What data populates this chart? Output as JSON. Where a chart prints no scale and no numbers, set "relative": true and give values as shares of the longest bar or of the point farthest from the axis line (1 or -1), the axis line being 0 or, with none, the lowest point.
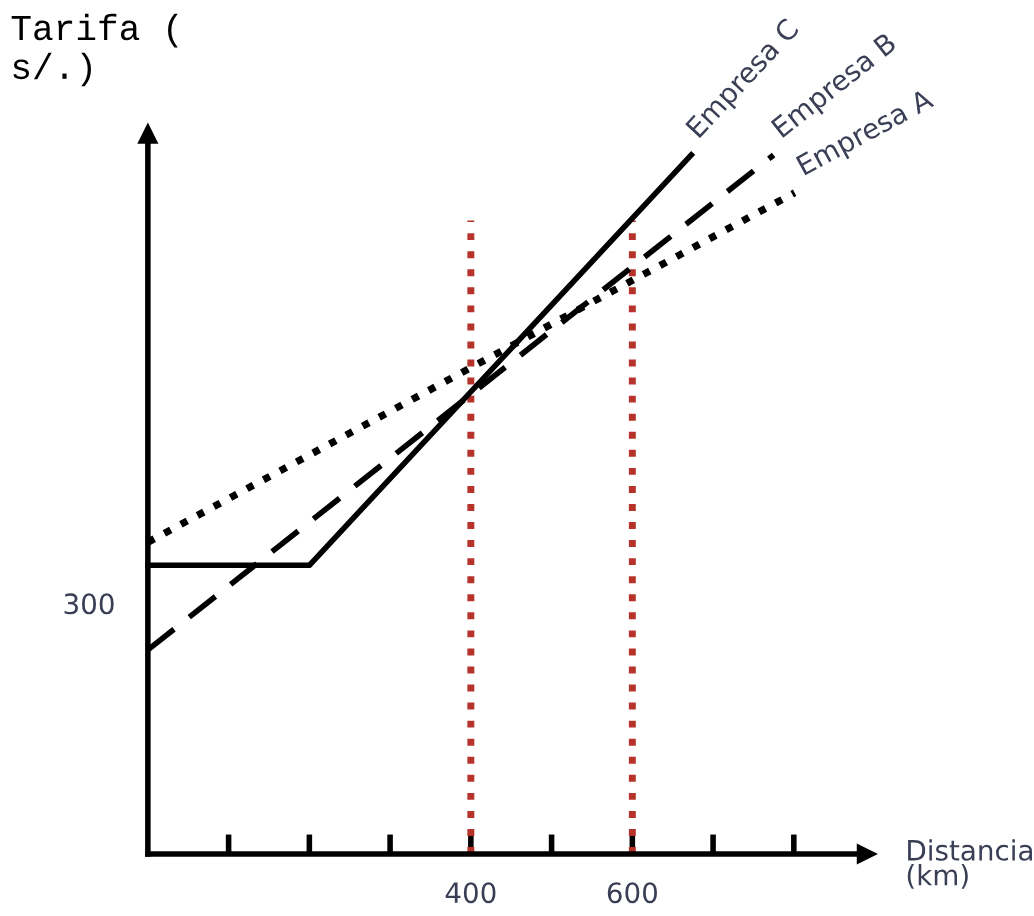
{
  "chart_data": {
    "type": "line",
    "ylabel": "Tarifa (\ns/.)",
    "xlabel": "Distancia\n(km)",
    "series": [
      {
        "name": "Empresa A",
        "color": "#000000",
        "line_style": "dotted",
        "x": [
          0,
          801
        ],
        "values": [
          0.446,
          0.946
        ]
      },
      {
        "name": "Empresa B",
        "color": "#000000",
        "line_style": "dashed",
        "x": [
          0,
          775
        ],
        "values": [
          0.292,
          1
        ]
      },
      {
        "name": "Empresa C",
        "color": "#000000",
        "line_style": "solid",
        "x": [
          0,
          200,
          673
        ],
        "values": [
          0.413,
          0.413,
          1
        ]
      }
    ],
    "relative": true,
    "annotations": [
      "300"
    ],
    "xlim": [
      0,
      890
    ],
    "xticks": [
      {
        "value": 100,
        "label": null
      },
      {
        "value": 200,
        "label": null
      },
      {
        "value": 300,
        "label": null
      },
      400,
      {
        "value": 500,
        "label": null
      },
      600,
      {
        "value": 700,
        "label": null
      },
      {
        "value": 800,
        "label": null
      }
    ],
    "ref_lines": [
      {
        "axis": "x",
        "value": 400,
        "color": "#b5332a",
        "line_style": "dotted"
      },
      {
        "axis": "x",
        "value": 600,
        "color": "#b5332a",
        "line_style": "dotted"
      }
    ],
    "grid": false,
    "legend": false,
    "marker": "none"
  }
}
